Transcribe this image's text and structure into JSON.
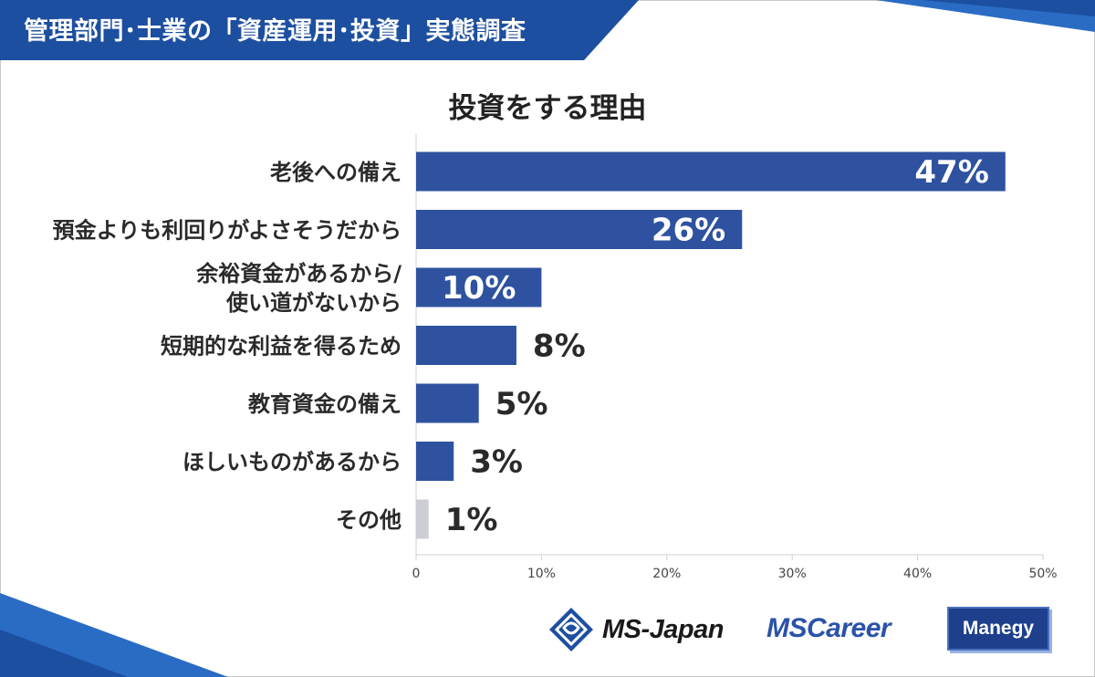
{
  "header": {
    "title": "管理部門･士業の「資産運用･投資」実態調査"
  },
  "colors": {
    "bar": "#2e529f",
    "bar_other": "#cdcdd6",
    "header_bg": "#1d4fa0",
    "accent": "#2a6cc4"
  },
  "logos": {
    "msjapan": "MS-Japan",
    "mscareer": "MSCareer",
    "manegy": "Manegy"
  },
  "chart_data": {
    "type": "bar",
    "orientation": "horizontal",
    "title": "投資をする理由",
    "categories": [
      "老後への備え",
      "預金よりも利回りがよさそうだから",
      "余裕資金があるから/\n使い道がないから",
      "短期的な利益を得るため",
      "教育資金の備え",
      "ほしいものがあるから",
      "その他"
    ],
    "values": [
      47,
      26,
      10,
      8,
      5,
      3,
      1
    ],
    "value_labels": [
      "47%",
      "26%",
      "10%",
      "8%",
      "5%",
      "3%",
      "1%"
    ],
    "xlim": [
      0,
      50
    ],
    "x_ticks": [
      "0",
      "10%",
      "20%",
      "30%",
      "40%",
      "50%"
    ],
    "grid": false
  }
}
